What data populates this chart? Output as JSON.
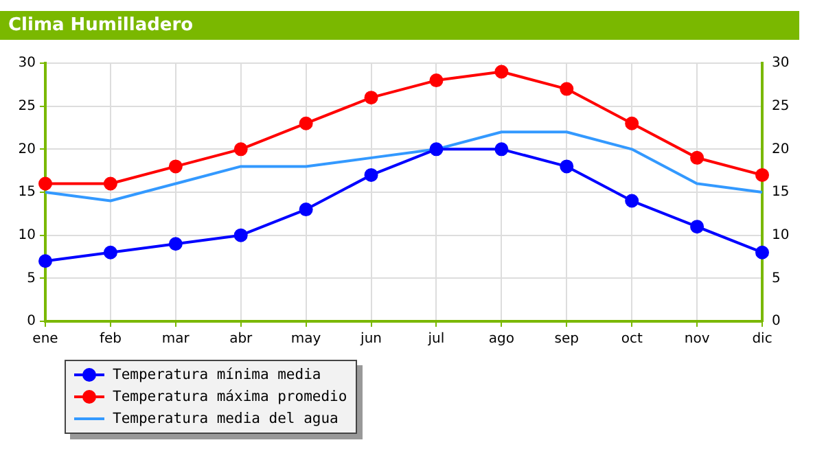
{
  "chart_data": {
    "type": "line",
    "title": "Clima Humilladero",
    "categories": [
      "ene",
      "feb",
      "mar",
      "abr",
      "may",
      "jun",
      "jul",
      "ago",
      "sep",
      "oct",
      "nov",
      "dic"
    ],
    "series": [
      {
        "name": "Temperatura mínima media",
        "color": "#0000ff",
        "marker": "circle",
        "values": [
          7,
          8,
          9,
          10,
          13,
          17,
          20,
          20,
          18,
          14,
          11,
          8
        ]
      },
      {
        "name": "Temperatura máxima promedio",
        "color": "#ff0000",
        "marker": "circle",
        "values": [
          16,
          16,
          18,
          20,
          23,
          26,
          28,
          29,
          27,
          23,
          19,
          17
        ]
      },
      {
        "name": "Temperatura media del agua",
        "color": "#3399ff",
        "marker": "none",
        "values": [
          15,
          14,
          16,
          18,
          18,
          19,
          20,
          22,
          22,
          20,
          16,
          15
        ]
      }
    ],
    "ylim": [
      0,
      30
    ],
    "yticks": [
      0,
      5,
      10,
      15,
      20,
      25,
      30
    ],
    "y2lim": [
      0,
      30
    ],
    "y2ticks": [
      0,
      5,
      10,
      15,
      20,
      25,
      30
    ],
    "grid": true,
    "legend": "bottom left"
  }
}
